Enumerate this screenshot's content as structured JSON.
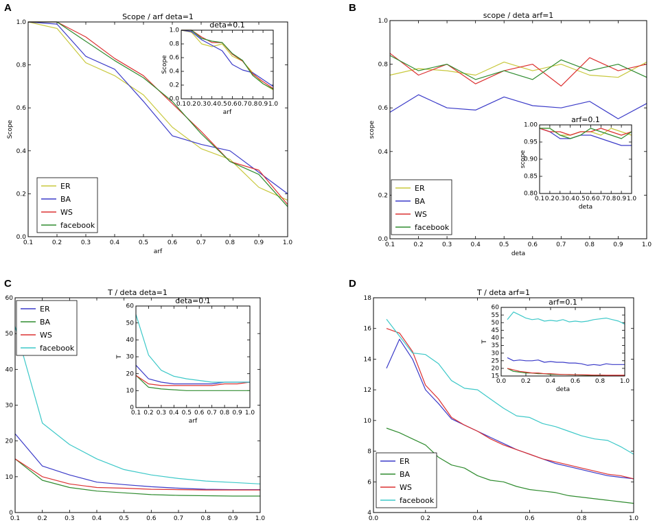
{
  "colors": {
    "ER_yellow": "#c8c83c",
    "blue": "#3a3ac8",
    "red": "#dc3030",
    "green": "#2e8b2e",
    "cyan": "#3cc8c8"
  },
  "chart_data": [
    {
      "panel": "A",
      "type": "line",
      "title": "Scope / arf  deta=1",
      "xlabel": "arf",
      "ylabel": "Scope",
      "xlim": [
        0.1,
        1.0
      ],
      "ylim": [
        0.0,
        1.0
      ],
      "xticks": [
        "0.1",
        "0.2",
        "0.3",
        "0.4",
        "0.5",
        "0.6",
        "0.7",
        "0.8",
        "0.9",
        "1.0"
      ],
      "yticks": [
        "0.0",
        "0.2",
        "0.4",
        "0.6",
        "0.8",
        "1.0"
      ],
      "x": [
        0.1,
        0.2,
        0.3,
        0.4,
        0.5,
        0.6,
        0.7,
        0.8,
        0.9,
        1.0
      ],
      "legend": "lower-left",
      "series": [
        {
          "name": "ER",
          "color": "#c8c83c",
          "values": [
            1.0,
            0.97,
            0.81,
            0.75,
            0.66,
            0.51,
            0.41,
            0.36,
            0.23,
            0.17
          ]
        },
        {
          "name": "BA",
          "color": "#3a3ac8",
          "values": [
            1.0,
            0.99,
            0.84,
            0.78,
            0.63,
            0.47,
            0.43,
            0.4,
            0.3,
            0.2
          ]
        },
        {
          "name": "WS",
          "color": "#dc3030",
          "values": [
            1.0,
            1.0,
            0.93,
            0.83,
            0.75,
            0.62,
            0.49,
            0.35,
            0.31,
            0.15
          ]
        },
        {
          "name": "facebook",
          "color": "#2e8b2e",
          "values": [
            1.0,
            1.0,
            0.91,
            0.82,
            0.74,
            0.63,
            0.48,
            0.35,
            0.29,
            0.14
          ]
        }
      ],
      "inset": {
        "title": "deta=0.1",
        "xlabel": "arf",
        "ylabel": "Scope",
        "xlim": [
          0.1,
          1.0
        ],
        "ylim": [
          0.0,
          1.0
        ],
        "xticks": [
          "0.1",
          "0.2",
          "0.3",
          "0.4",
          "0.5",
          "0.6",
          "0.7",
          "0.8",
          "0.9",
          "1.0"
        ],
        "yticks": [
          "0.0",
          "0.2",
          "0.4",
          "0.6",
          "0.8",
          "1.0"
        ],
        "x": [
          0.1,
          0.2,
          0.3,
          0.4,
          0.5,
          0.6,
          0.7,
          0.8,
          0.9,
          1.0
        ],
        "series": [
          {
            "name": "ER",
            "color": "#c8c83c",
            "values": [
              1.0,
              0.97,
              0.8,
              0.76,
              0.8,
              0.62,
              0.55,
              0.38,
              0.22,
              0.13
            ]
          },
          {
            "name": "BA",
            "color": "#3a3ac8",
            "values": [
              1.0,
              0.98,
              0.86,
              0.78,
              0.7,
              0.5,
              0.42,
              0.38,
              0.28,
              0.18
            ]
          },
          {
            "name": "WS",
            "color": "#dc3030",
            "values": [
              1.0,
              1.0,
              0.9,
              0.82,
              0.82,
              0.65,
              0.55,
              0.36,
              0.25,
              0.15
            ]
          },
          {
            "name": "facebook",
            "color": "#2e8b2e",
            "values": [
              1.0,
              1.0,
              0.88,
              0.84,
              0.82,
              0.66,
              0.56,
              0.34,
              0.22,
              0.14
            ]
          }
        ]
      }
    },
    {
      "panel": "B",
      "type": "line",
      "title": "scope / deta  arf=1",
      "xlabel": "deta",
      "ylabel": "scope",
      "xlim": [
        0.1,
        1.0
      ],
      "ylim": [
        0.0,
        1.0
      ],
      "xticks": [
        "0.1",
        "0.2",
        "0.3",
        "0.4",
        "0.5",
        "0.6",
        "0.7",
        "0.8",
        "0.9",
        "1.0"
      ],
      "yticks": [
        "0.0",
        "0.2",
        "0.4",
        "0.6",
        "0.8",
        "1.0"
      ],
      "x": [
        0.1,
        0.2,
        0.3,
        0.4,
        0.5,
        0.6,
        0.7,
        0.8,
        0.9,
        1.0
      ],
      "legend": "lower-left",
      "series": [
        {
          "name": "ER",
          "color": "#c8c83c",
          "values": [
            0.75,
            0.78,
            0.77,
            0.75,
            0.81,
            0.77,
            0.8,
            0.75,
            0.74,
            0.81
          ]
        },
        {
          "name": "BA",
          "color": "#3a3ac8",
          "values": [
            0.58,
            0.66,
            0.6,
            0.59,
            0.65,
            0.61,
            0.6,
            0.63,
            0.55,
            0.62
          ]
        },
        {
          "name": "WS",
          "color": "#dc3030",
          "values": [
            0.85,
            0.75,
            0.8,
            0.71,
            0.77,
            0.8,
            0.7,
            0.83,
            0.77,
            0.8
          ]
        },
        {
          "name": "facebook",
          "color": "#2e8b2e",
          "values": [
            0.84,
            0.77,
            0.8,
            0.73,
            0.77,
            0.73,
            0.82,
            0.77,
            0.8,
            0.74
          ]
        }
      ],
      "inset": {
        "title": "arf=0.1",
        "xlabel": "deta",
        "ylabel": "scope",
        "xlim": [
          0.1,
          1.0
        ],
        "ylim": [
          0.8,
          1.0
        ],
        "xticks": [
          "0.1",
          "0.2",
          "0.3",
          "0.4",
          "0.5",
          "0.6",
          "0.7",
          "0.8",
          "0.9",
          "1.0"
        ],
        "yticks": [
          "0.80",
          "0.85",
          "0.90",
          "0.95",
          "1.00"
        ],
        "x": [
          0.1,
          0.2,
          0.3,
          0.4,
          0.5,
          0.6,
          0.7,
          0.8,
          0.9,
          1.0
        ],
        "series": [
          {
            "name": "ER",
            "color": "#c8c83c",
            "values": [
              0.99,
              0.99,
              0.97,
              0.97,
              0.98,
              0.98,
              0.97,
              0.99,
              0.98,
              0.97
            ]
          },
          {
            "name": "BA",
            "color": "#3a3ac8",
            "values": [
              0.99,
              0.98,
              0.96,
              0.96,
              0.97,
              0.97,
              0.96,
              0.95,
              0.94,
              0.94
            ]
          },
          {
            "name": "WS",
            "color": "#dc3030",
            "values": [
              0.99,
              0.98,
              0.98,
              0.97,
              0.98,
              0.98,
              0.99,
              0.98,
              0.97,
              0.98
            ]
          },
          {
            "name": "facebook",
            "color": "#2e8b2e",
            "values": [
              0.99,
              0.99,
              0.97,
              0.96,
              0.97,
              0.99,
              0.98,
              0.97,
              0.96,
              0.98
            ]
          }
        ]
      }
    },
    {
      "panel": "C",
      "type": "line",
      "title": "T / deta  deta=1",
      "xlabel": "",
      "ylabel": "",
      "xlim": [
        0.1,
        1.0
      ],
      "ylim": [
        0,
        60
      ],
      "xticks": [
        "0.1",
        "0.2",
        "0.3",
        "0.4",
        "0.5",
        "0.6",
        "0.7",
        "0.8",
        "0.9",
        "1.0"
      ],
      "yticks": [
        "0",
        "10",
        "20",
        "30",
        "40",
        "50",
        "60"
      ],
      "x": [
        0.1,
        0.2,
        0.3,
        0.4,
        0.5,
        0.6,
        0.7,
        0.8,
        0.9,
        1.0
      ],
      "legend": "upper-left",
      "series": [
        {
          "name": "ER",
          "color": "#3a3ac8",
          "values": [
            22,
            13,
            10.5,
            8.5,
            7.8,
            7.2,
            6.8,
            6.5,
            6.4,
            6.4
          ]
        },
        {
          "name": "BA",
          "color": "#2e8b2e",
          "values": [
            15,
            9,
            7,
            6,
            5.5,
            5,
            4.8,
            4.7,
            4.6,
            4.6
          ]
        },
        {
          "name": "WS",
          "color": "#dc3030",
          "values": [
            15,
            10,
            8,
            7,
            6.8,
            6.5,
            6.4,
            6.3,
            6.3,
            6.3
          ]
        },
        {
          "name": "facebook",
          "color": "#3cc8c8",
          "values": [
            52,
            25,
            19,
            15,
            12,
            10.5,
            9.5,
            8.8,
            8.4,
            8
          ]
        }
      ],
      "inset": {
        "title": "deta=0.1",
        "xlabel": "arf",
        "ylabel": "T",
        "xlim": [
          0.1,
          1.0
        ],
        "ylim": [
          0,
          60
        ],
        "xticks": [
          "0.1",
          "0.2",
          "0.3",
          "0.4",
          "0.5",
          "0.6",
          "0.7",
          "0.8",
          "0.9",
          "1.0"
        ],
        "yticks": [
          "0",
          "10",
          "20",
          "30",
          "40",
          "50",
          "60"
        ],
        "x": [
          0.1,
          0.2,
          0.3,
          0.4,
          0.5,
          0.6,
          0.7,
          0.8,
          0.9,
          1.0
        ],
        "series": [
          {
            "name": "ER",
            "color": "#3a3ac8",
            "values": [
              25,
              17,
              15,
              14,
              14,
              14,
              14,
              15,
              15,
              15
            ]
          },
          {
            "name": "BA",
            "color": "#2e8b2e",
            "values": [
              19,
              12,
              11,
              10.5,
              10,
              10,
              10,
              10,
              10,
              10
            ]
          },
          {
            "name": "WS",
            "color": "#dc3030",
            "values": [
              19,
              14,
              13,
              13,
              13,
              13,
              13,
              14,
              14,
              15
            ]
          },
          {
            "name": "facebook",
            "color": "#3cc8c8",
            "values": [
              55,
              31,
              22,
              18.5,
              17,
              16,
              15,
              15,
              15,
              15
            ]
          }
        ]
      }
    },
    {
      "panel": "D",
      "type": "line",
      "title": "T / deta  arf=1",
      "xlabel": "",
      "ylabel": "",
      "xlim": [
        0.0,
        1.0
      ],
      "ylim": [
        4,
        18
      ],
      "xticks": [
        "0.0",
        "0.2",
        "0.4",
        "0.6",
        "0.8",
        "1.0"
      ],
      "yticks": [
        "4",
        "6",
        "8",
        "10",
        "12",
        "14",
        "16",
        "18"
      ],
      "x": [
        0.05,
        0.1,
        0.15,
        0.2,
        0.25,
        0.3,
        0.35,
        0.4,
        0.45,
        0.5,
        0.55,
        0.6,
        0.65,
        0.7,
        0.75,
        0.8,
        0.85,
        0.9,
        0.95,
        1.0
      ],
      "legend": "lower-left",
      "series": [
        {
          "name": "ER",
          "color": "#3a3ac8",
          "values": [
            13.4,
            15.3,
            14.0,
            12.0,
            11.1,
            10.1,
            9.7,
            9.3,
            8.9,
            8.5,
            8.1,
            7.8,
            7.5,
            7.2,
            7.0,
            6.8,
            6.6,
            6.4,
            6.3,
            6.2
          ]
        },
        {
          "name": "BA",
          "color": "#2e8b2e",
          "values": [
            9.5,
            9.2,
            8.8,
            8.4,
            7.6,
            7.1,
            6.9,
            6.4,
            6.1,
            6.0,
            5.7,
            5.5,
            5.4,
            5.3,
            5.1,
            5.0,
            4.9,
            4.8,
            4.7,
            4.6
          ]
        },
        {
          "name": "WS",
          "color": "#dc3030",
          "values": [
            16.0,
            15.7,
            14.5,
            12.3,
            11.4,
            10.2,
            9.7,
            9.3,
            8.8,
            8.4,
            8.1,
            7.8,
            7.5,
            7.3,
            7.1,
            6.9,
            6.7,
            6.5,
            6.4,
            6.2
          ]
        },
        {
          "name": "facebook",
          "color": "#3cc8c8",
          "values": [
            16.6,
            15.5,
            14.4,
            14.3,
            13.7,
            12.6,
            12.1,
            12.0,
            11.4,
            10.8,
            10.3,
            10.2,
            9.8,
            9.6,
            9.3,
            9.0,
            8.8,
            8.7,
            8.3,
            7.8
          ]
        }
      ],
      "inset": {
        "title": "arf=0.1",
        "xlabel": "deta",
        "ylabel": "T",
        "xlim": [
          0.0,
          1.0
        ],
        "ylim": [
          15,
          60
        ],
        "xticks": [
          "0.0",
          "0.2",
          "0.4",
          "0.6",
          "0.8",
          "1.0"
        ],
        "yticks": [
          "15",
          "20",
          "25",
          "30",
          "35",
          "40",
          "45",
          "50",
          "55",
          "60"
        ],
        "x": [
          0.05,
          0.1,
          0.15,
          0.2,
          0.25,
          0.3,
          0.35,
          0.4,
          0.45,
          0.5,
          0.55,
          0.6,
          0.65,
          0.7,
          0.75,
          0.8,
          0.85,
          0.9,
          0.95,
          1.0
        ],
        "series": [
          {
            "name": "ER",
            "color": "#3a3ac8",
            "values": [
              27,
              25,
              25.5,
              25,
              25,
              25.5,
              24,
              24.5,
              24,
              24,
              23.5,
              23.5,
              23,
              22,
              22.5,
              22,
              23,
              22.5,
              22.5,
              22.5
            ]
          },
          {
            "name": "BA",
            "color": "#2e8b2e",
            "values": [
              20,
              18,
              17.5,
              17,
              17,
              16.5,
              16.5,
              16,
              16,
              16,
              15.8,
              15.7,
              15.6,
              15.5,
              15.5,
              15.5,
              15.4,
              15.4,
              15.3,
              15.3
            ]
          },
          {
            "name": "WS",
            "color": "#dc3030",
            "values": [
              20,
              19,
              18,
              17.5,
              17,
              17,
              16.5,
              16.5,
              16.2,
              16,
              16,
              15.8,
              15.8,
              15.7,
              15.6,
              15.6,
              15.5,
              15.5,
              15.5,
              15.5
            ]
          },
          {
            "name": "facebook",
            "color": "#3cc8c8",
            "values": [
              52,
              57,
              55,
              53,
              52,
              52.5,
              51,
              51.5,
              51,
              52,
              50.5,
              51,
              50.5,
              51,
              52,
              52.5,
              53,
              52,
              51,
              49
            ]
          }
        ]
      }
    }
  ]
}
